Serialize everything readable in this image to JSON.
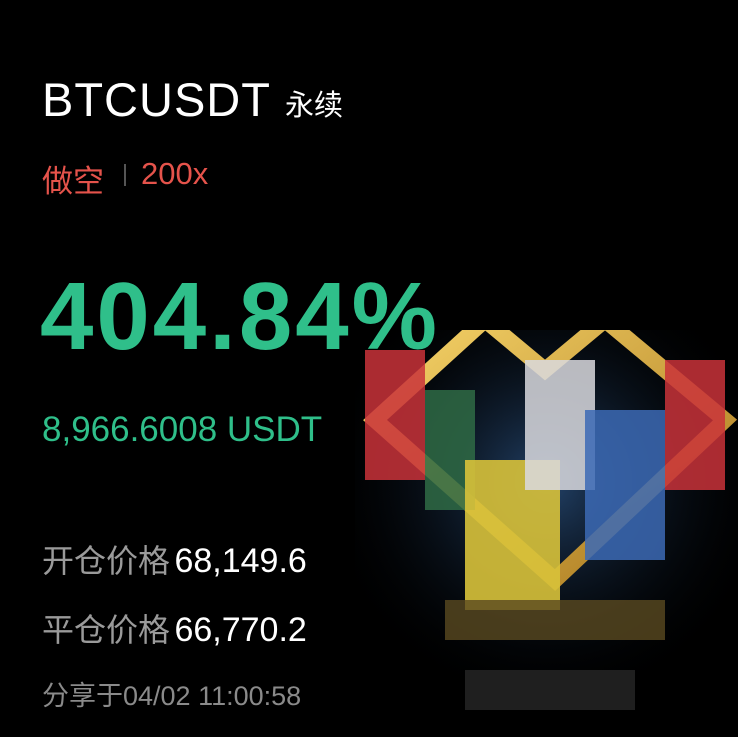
{
  "header": {
    "symbol": "BTCUSDT",
    "contract_type": "永续"
  },
  "position": {
    "side": "做空",
    "leverage": "200x"
  },
  "pnl": {
    "percent": "404.84%",
    "amount": "8,966.6008 USDT"
  },
  "prices": [
    {
      "label": "开仓价格",
      "value": "68,149.6"
    },
    {
      "label": "平仓价格",
      "value": "66,770.2"
    }
  ],
  "share": {
    "label": "分享于",
    "time": "04/02 11:00:58"
  },
  "colors": {
    "short": "#e5534b",
    "profit": "#2fbf8a",
    "background": "#000000"
  }
}
